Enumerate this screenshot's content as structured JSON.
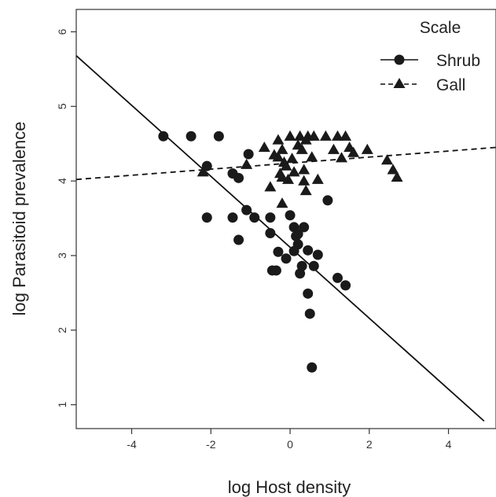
{
  "chart_data": {
    "type": "scatter",
    "title": "",
    "xlabel": "log Host density",
    "ylabel": "log Parasitoid prevalence",
    "xlim": [
      -5.4,
      5.2
    ],
    "ylim": [
      0.68,
      6.3
    ],
    "xticks": [
      -4,
      -2,
      0,
      2,
      4
    ],
    "yticks": [
      1,
      2,
      3,
      4,
      5,
      6
    ],
    "grid": false,
    "legend": {
      "title": "Scale",
      "position": "top-right"
    },
    "series": [
      {
        "name": "Shrub",
        "marker": "circle",
        "line_style": "solid",
        "fit_line": {
          "x": [
            -5.4,
            4.9
          ],
          "y": [
            5.68,
            0.78
          ]
        },
        "points": [
          [
            -3.2,
            4.6
          ],
          [
            -2.5,
            4.6
          ],
          [
            -1.8,
            4.6
          ],
          [
            -2.1,
            4.2
          ],
          [
            -2.1,
            3.51
          ],
          [
            -1.45,
            4.1
          ],
          [
            -1.3,
            4.04
          ],
          [
            -1.05,
            4.36
          ],
          [
            -1.45,
            3.51
          ],
          [
            -1.3,
            3.21
          ],
          [
            -1.1,
            3.61
          ],
          [
            -0.9,
            3.51
          ],
          [
            -0.5,
            3.51
          ],
          [
            -0.5,
            3.3
          ],
          [
            -0.45,
            2.8
          ],
          [
            -0.35,
            2.8
          ],
          [
            -0.3,
            3.05
          ],
          [
            -0.1,
            2.96
          ],
          [
            0.0,
            3.54
          ],
          [
            0.1,
            3.38
          ],
          [
            0.15,
            3.26
          ],
          [
            0.2,
            3.29
          ],
          [
            0.1,
            3.06
          ],
          [
            0.2,
            3.15
          ],
          [
            0.35,
            3.38
          ],
          [
            0.3,
            2.86
          ],
          [
            0.25,
            2.76
          ],
          [
            0.45,
            3.07
          ],
          [
            0.6,
            2.86
          ],
          [
            0.7,
            3.01
          ],
          [
            0.45,
            2.49
          ],
          [
            0.5,
            2.22
          ],
          [
            0.55,
            1.5
          ],
          [
            0.95,
            3.74
          ],
          [
            1.2,
            2.7
          ],
          [
            1.4,
            2.6
          ]
        ]
      },
      {
        "name": "Gall",
        "marker": "triangle",
        "line_style": "dashed",
        "fit_line": {
          "x": [
            -5.4,
            5.2
          ],
          "y": [
            4.02,
            4.45
          ]
        },
        "points": [
          [
            -2.2,
            4.12
          ],
          [
            -1.1,
            4.22
          ],
          [
            -0.65,
            4.45
          ],
          [
            -0.5,
            3.92
          ],
          [
            -0.3,
            4.32
          ],
          [
            -0.25,
            4.1
          ],
          [
            -0.4,
            4.35
          ],
          [
            -0.2,
            4.42
          ],
          [
            -0.3,
            4.55
          ],
          [
            -0.15,
            4.25
          ],
          [
            -0.1,
            4.2
          ],
          [
            -0.05,
            4.02
          ],
          [
            0.0,
            4.6
          ],
          [
            0.05,
            4.3
          ],
          [
            0.1,
            4.12
          ],
          [
            -0.2,
            4.05
          ],
          [
            -0.2,
            3.7
          ],
          [
            0.2,
            4.48
          ],
          [
            0.25,
            4.6
          ],
          [
            0.3,
            4.42
          ],
          [
            0.35,
            4.0
          ],
          [
            0.35,
            4.15
          ],
          [
            0.4,
            4.55
          ],
          [
            0.4,
            3.87
          ],
          [
            0.45,
            4.6
          ],
          [
            0.55,
            4.32
          ],
          [
            0.6,
            4.6
          ],
          [
            0.7,
            4.02
          ],
          [
            0.9,
            4.6
          ],
          [
            1.1,
            4.42
          ],
          [
            1.2,
            4.6
          ],
          [
            1.3,
            4.31
          ],
          [
            1.4,
            4.6
          ],
          [
            1.5,
            4.45
          ],
          [
            1.6,
            4.38
          ],
          [
            1.95,
            4.42
          ],
          [
            2.45,
            4.28
          ],
          [
            2.6,
            4.15
          ],
          [
            2.7,
            4.05
          ]
        ]
      }
    ]
  }
}
